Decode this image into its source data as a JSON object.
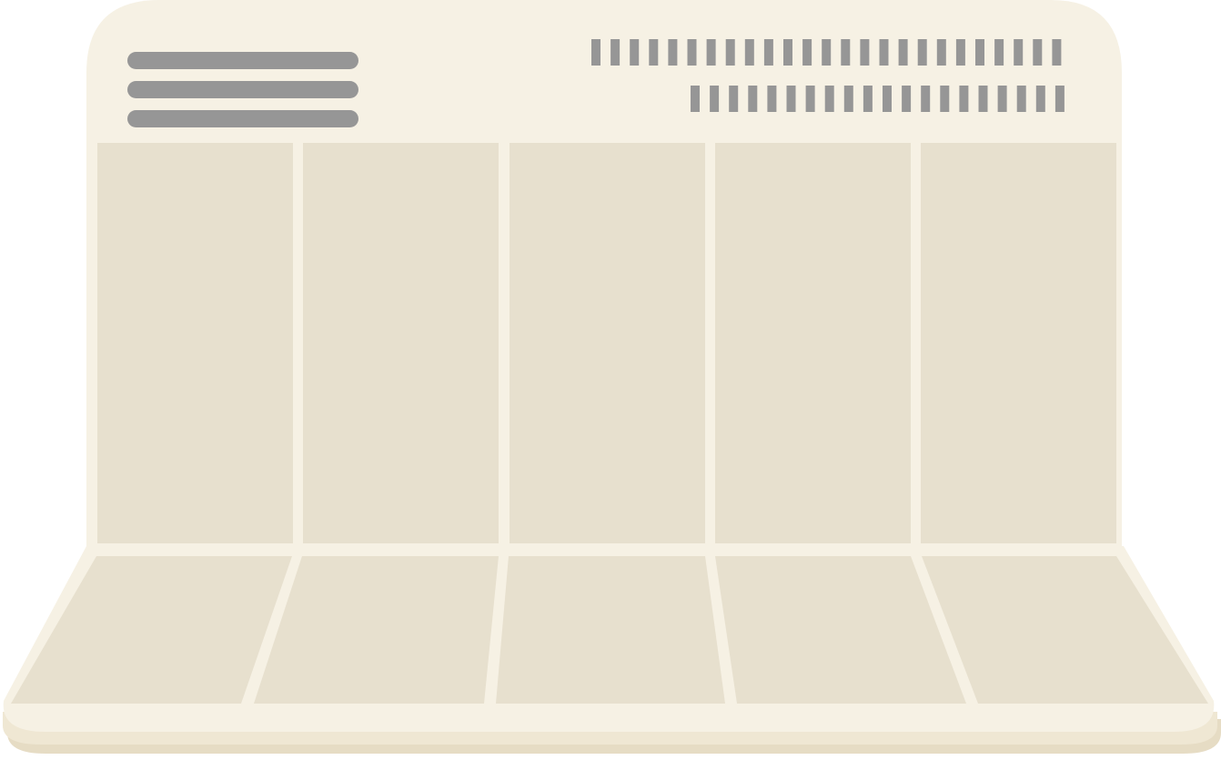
{
  "colors": {
    "board": "#F6F1E4",
    "panel": "#E7E0CE",
    "base_shadow": "#E6DCC4",
    "base_edge": "#EFE7D3",
    "mark": "#969696"
  },
  "header": {
    "menu_icon": "menu-lines-icon",
    "dotted_rows": [
      {
        "bar_count": 25
      },
      {
        "bar_count": 20
      }
    ]
  },
  "board": {
    "column_count": 5
  }
}
